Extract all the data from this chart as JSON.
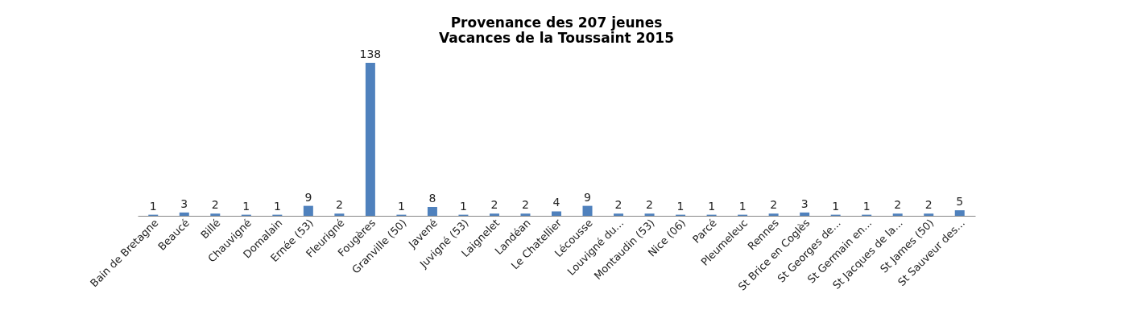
{
  "chart_data": {
    "type": "bar",
    "title": "Provenance des 207 jeunes\nVacances de la Toussaint 2015",
    "categories": [
      "Bain de Bretagne",
      "Beaucé",
      "Billé",
      "Chauvigné",
      "Domalain",
      "Ernée (53)",
      "Fleurigné",
      "Fougères",
      "Granville (50)",
      "Javené",
      "Juvigné (53)",
      "Laignelet",
      "Landéan",
      "Le Chatellier",
      "Lécousse",
      "Louvigné du...",
      "Montaudin (53)",
      "Nice (06)",
      "Parcé",
      "Pleumeleuc",
      "Rennes",
      "St Brice en Coglès",
      "St Georges de...",
      "St Germain en...",
      "St Jacques de la...",
      "St James (50)",
      "St Sauveur des..."
    ],
    "values": [
      1,
      3,
      2,
      1,
      1,
      9,
      2,
      138,
      1,
      8,
      1,
      2,
      2,
      4,
      9,
      2,
      2,
      1,
      1,
      1,
      2,
      3,
      1,
      1,
      2,
      2,
      5
    ],
    "color": "#4f81bd",
    "data_labels": true,
    "grid": false
  }
}
